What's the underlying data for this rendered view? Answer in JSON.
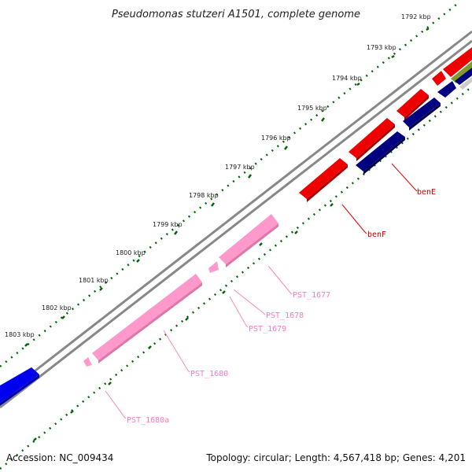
{
  "title": "Pseudomonas stutzeri A1501, complete genome",
  "footer": {
    "accession": "Accession: NC_009434",
    "summary": "Topology: circular; Length: 4,567,418 bp; Genes: 4,201"
  },
  "ticks": [
    "1792 kbp",
    "1793 kbp",
    "1794 kbp",
    "1795 kbp",
    "1796 kbp",
    "1797 kbp",
    "1798 kbp",
    "1799 kbp",
    "1800 kbp",
    "1801 kbp",
    "1802 kbp",
    "1803 kbp"
  ],
  "gene_labels": {
    "benE": "benE",
    "benF": "benF",
    "pst1677": "PST_1677",
    "pst1678": "PST_1678",
    "pst1679": "PST_1679",
    "pst1680": "PST_1680",
    "pst1680a": "PST_1680a"
  },
  "colors": {
    "red": "#ff0000",
    "navy": "#000080",
    "blue": "#0000ee",
    "pink": "#ff99cc",
    "olive": "#7f9a2a",
    "backbone": "#888888",
    "dots": "#006600"
  }
}
